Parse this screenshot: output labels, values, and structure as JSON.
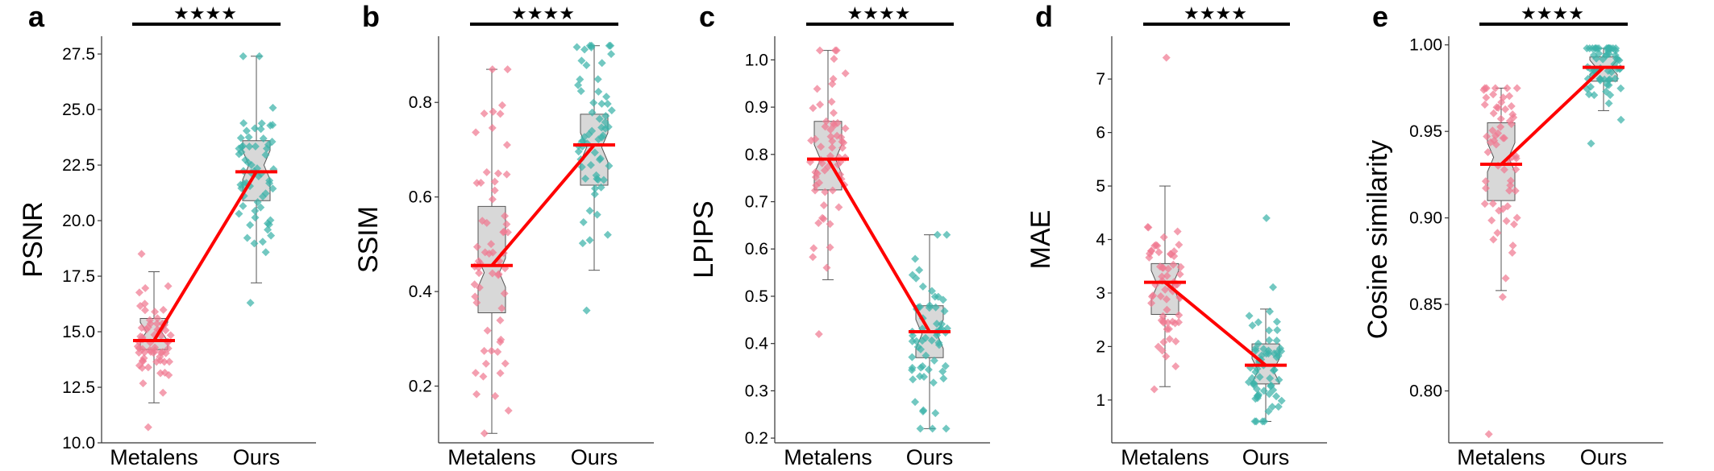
{
  "figure": {
    "colors": {
      "metalens": "#F07A92",
      "ours": "#3BB3A9",
      "mean_line": "#FF0000",
      "box_fill": "#D8D8D8",
      "box_edge": "#555555"
    },
    "significance_marker": "★★★★"
  },
  "chart_data": [
    {
      "panel": "a",
      "type": "box-strip",
      "ylabel": "PSNR",
      "ylim": [
        10.0,
        28.3
      ],
      "yticks": [
        10.0,
        12.5,
        15.0,
        17.5,
        20.0,
        22.5,
        25.0,
        27.5
      ],
      "ytick_labels": [
        "10.0",
        "12.5",
        "15.0",
        "17.5",
        "20.0",
        "22.5",
        "25.0",
        "27.5"
      ],
      "categories": [
        "Metalens",
        "Ours"
      ],
      "significance": "★★★★",
      "series": [
        {
          "name": "Metalens",
          "mean": 14.6,
          "box": {
            "min": 11.8,
            "q1": 14.2,
            "median": 15.0,
            "q3": 15.6,
            "max": 17.7
          },
          "range": [
            10.7,
            18.5
          ],
          "seed": 11
        },
        {
          "name": "Ours",
          "mean": 22.2,
          "box": {
            "min": 17.2,
            "q1": 20.9,
            "median": 22.5,
            "q3": 23.6,
            "max": 27.4
          },
          "range": [
            16.3,
            27.4
          ],
          "seed": 12
        }
      ]
    },
    {
      "panel": "b",
      "type": "box-strip",
      "ylabel": "SSIM",
      "ylim": [
        0.08,
        0.94
      ],
      "yticks": [
        0.2,
        0.4,
        0.6,
        0.8
      ],
      "ytick_labels": [
        "0.2",
        "0.4",
        "0.6",
        "0.8"
      ],
      "categories": [
        "Metalens",
        "Ours"
      ],
      "significance": "★★★★",
      "series": [
        {
          "name": "Metalens",
          "mean": 0.455,
          "box": {
            "min": 0.1,
            "q1": 0.355,
            "median": 0.44,
            "q3": 0.58,
            "max": 0.87
          },
          "range": [
            0.1,
            0.87
          ],
          "seed": 21
        },
        {
          "name": "Ours",
          "mean": 0.71,
          "box": {
            "min": 0.445,
            "q1": 0.625,
            "median": 0.705,
            "q3": 0.775,
            "max": 0.92
          },
          "range": [
            0.36,
            0.92
          ],
          "seed": 22
        }
      ]
    },
    {
      "panel": "c",
      "type": "box-strip",
      "ylabel": "LPIPS",
      "ylim": [
        0.19,
        1.05
      ],
      "yticks": [
        0.2,
        0.3,
        0.4,
        0.5,
        0.6,
        0.7,
        0.8,
        0.9,
        1.0
      ],
      "ytick_labels": [
        "0.2",
        "0.3",
        "0.4",
        "0.5",
        "0.6",
        "0.7",
        "0.8",
        "0.9",
        "1.0"
      ],
      "categories": [
        "Metalens",
        "Ours"
      ],
      "significance": "★★★★",
      "series": [
        {
          "name": "Metalens",
          "mean": 0.79,
          "box": {
            "min": 0.535,
            "q1": 0.725,
            "median": 0.79,
            "q3": 0.87,
            "max": 1.02
          },
          "range": [
            0.42,
            1.02
          ],
          "seed": 31
        },
        {
          "name": "Ours",
          "mean": 0.425,
          "box": {
            "min": 0.22,
            "q1": 0.37,
            "median": 0.42,
            "q3": 0.48,
            "max": 0.63
          },
          "range": [
            0.22,
            0.63
          ],
          "seed": 32
        }
      ]
    },
    {
      "panel": "d",
      "type": "box-strip",
      "ylabel": "MAE",
      "ylim": [
        0.2,
        7.8
      ],
      "yticks": [
        1,
        2,
        3,
        4,
        5,
        6,
        7
      ],
      "ytick_labels": [
        "1",
        "2",
        "3",
        "4",
        "5",
        "6",
        "7"
      ],
      "categories": [
        "Metalens",
        "Ours"
      ],
      "significance": "★★★★",
      "series": [
        {
          "name": "Metalens",
          "mean": 3.2,
          "box": {
            "min": 1.25,
            "q1": 2.6,
            "median": 3.15,
            "q3": 3.55,
            "max": 5.0
          },
          "range": [
            1.2,
            7.4
          ],
          "seed": 41
        },
        {
          "name": "Ours",
          "mean": 1.65,
          "box": {
            "min": 0.6,
            "q1": 1.3,
            "median": 1.55,
            "q3": 2.05,
            "max": 2.7
          },
          "range": [
            0.6,
            4.4
          ],
          "seed": 42
        }
      ]
    },
    {
      "panel": "e",
      "type": "box-strip",
      "ylabel": "Cosine similarity",
      "ylim": [
        0.77,
        1.005
      ],
      "yticks": [
        0.8,
        0.85,
        0.9,
        0.95,
        1.0
      ],
      "ytick_labels": [
        "0.80",
        "0.85",
        "0.90",
        "0.95",
        "1.00"
      ],
      "categories": [
        "Metalens",
        "Ours"
      ],
      "significance": "★★★★",
      "series": [
        {
          "name": "Metalens",
          "mean": 0.931,
          "box": {
            "min": 0.858,
            "q1": 0.91,
            "median": 0.935,
            "q3": 0.955,
            "max": 0.975
          },
          "range": [
            0.775,
            0.975
          ],
          "seed": 51
        },
        {
          "name": "Ours",
          "mean": 0.987,
          "box": {
            "min": 0.962,
            "q1": 0.979,
            "median": 0.987,
            "q3": 0.993,
            "max": 0.998
          },
          "range": [
            0.943,
            0.998
          ],
          "seed": 52
        }
      ]
    }
  ]
}
